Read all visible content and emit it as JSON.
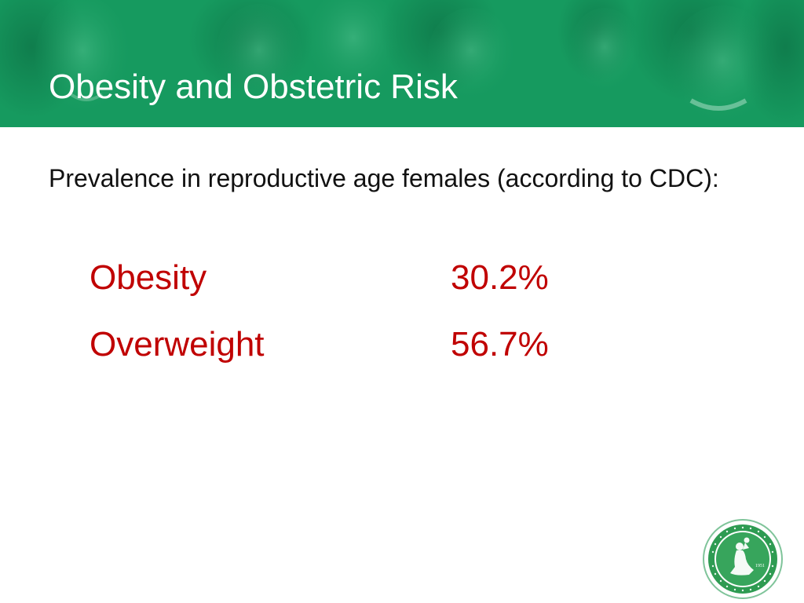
{
  "slide": {
    "title": "Obesity and Obstetric Risk",
    "intro": "Prevalence in reproductive age females (according to CDC):",
    "stats": [
      {
        "label": "Obesity",
        "value": "30.2%"
      },
      {
        "label": "Overweight",
        "value": "56.7%"
      }
    ]
  },
  "seal": {
    "icon": "society-seal-icon",
    "year": "1951"
  },
  "colors": {
    "header_green": "#169a5f",
    "title_text": "#ffffff",
    "body_text": "#111111",
    "stat_red": "#c00000",
    "seal_green": "#2e9b52"
  }
}
